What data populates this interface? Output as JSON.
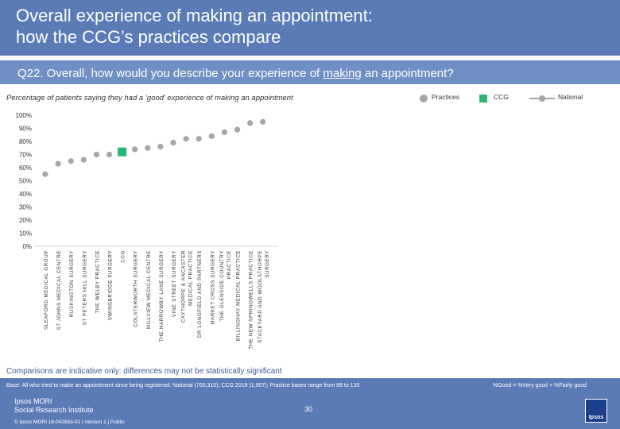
{
  "header": {
    "title": "Overall experience of making an appointment:\nhow the CCG’s practices compare",
    "question_before": "Q22. Overall, how would you describe your experience of ",
    "question_underlined": "making",
    "question_after": " an appointment?",
    "subtitle": "Percentage of patients saying they had a ‘good’ experience of making an appointment"
  },
  "legend": {
    "practices": "Practices",
    "ccg": "CCG",
    "national": "National"
  },
  "colors": {
    "practice": "#a6a6a6",
    "ccg": "#2bb673",
    "banner": "#5b7bb7"
  },
  "chart_data": {
    "type": "scatter",
    "title": "Percentage of patients saying they had a ‘good’ experience of making an appointment",
    "ylim": [
      0,
      100
    ],
    "yticks": [
      "0%",
      "10%",
      "20%",
      "30%",
      "40%",
      "50%",
      "60%",
      "70%",
      "80%",
      "90%",
      "100%"
    ],
    "categories": [
      "SLEAFORD MEDICAL GROUP",
      "ST JOHNS MEDICAL CENTRE",
      "RUSKINGTON SURGERY",
      "ST PETERS HILL SURGERY",
      "THE WELBY PRACTICE",
      "SWINGBRIDGE SURGERY",
      "CCG",
      "COLSTERWORTH SURGERY",
      "MILLVIEW MEDICAL CENTRE",
      "THE HARROWBY LANE SURGERY",
      "VINE STREET SURGERY",
      "CAYTHORPE & ANCASTER MEDICAL PRACTICE",
      "DR LONGFIELD AND PARTNERS",
      "MARKET CROSS SURGERY",
      "THE GLENSIDE COUNTRY PRACTICE",
      "BILLINGHAY MEDICAL PRACTICE",
      "THE NEW SPRINGWELLS PRACTICE",
      "STACKYARD AND WOOLSTHORPE SURGERY"
    ],
    "values": [
      55,
      63,
      65,
      66,
      70,
      70,
      72,
      74,
      75,
      76,
      79,
      82,
      82,
      84,
      87,
      89,
      94,
      95
    ],
    "ccg_index": 6,
    "national": null
  },
  "footer": {
    "note": "Comparisons are indicative only: differences may not be statistically significant",
    "base": "Base: All who tried to make an appointment since being registered: National (705,310); CCG 2019 (1,907); Practice bases range from 86 to 130",
    "good_definition": "%Good = %Very good + %Fairly good",
    "page_number": "30",
    "logo_text": "Ipsos MORI\nSocial Research Institute",
    "copyright": "© Ipsos MORI     18-042653-01 | Version 1 | Public",
    "logo_mark": "Ipsos"
  }
}
